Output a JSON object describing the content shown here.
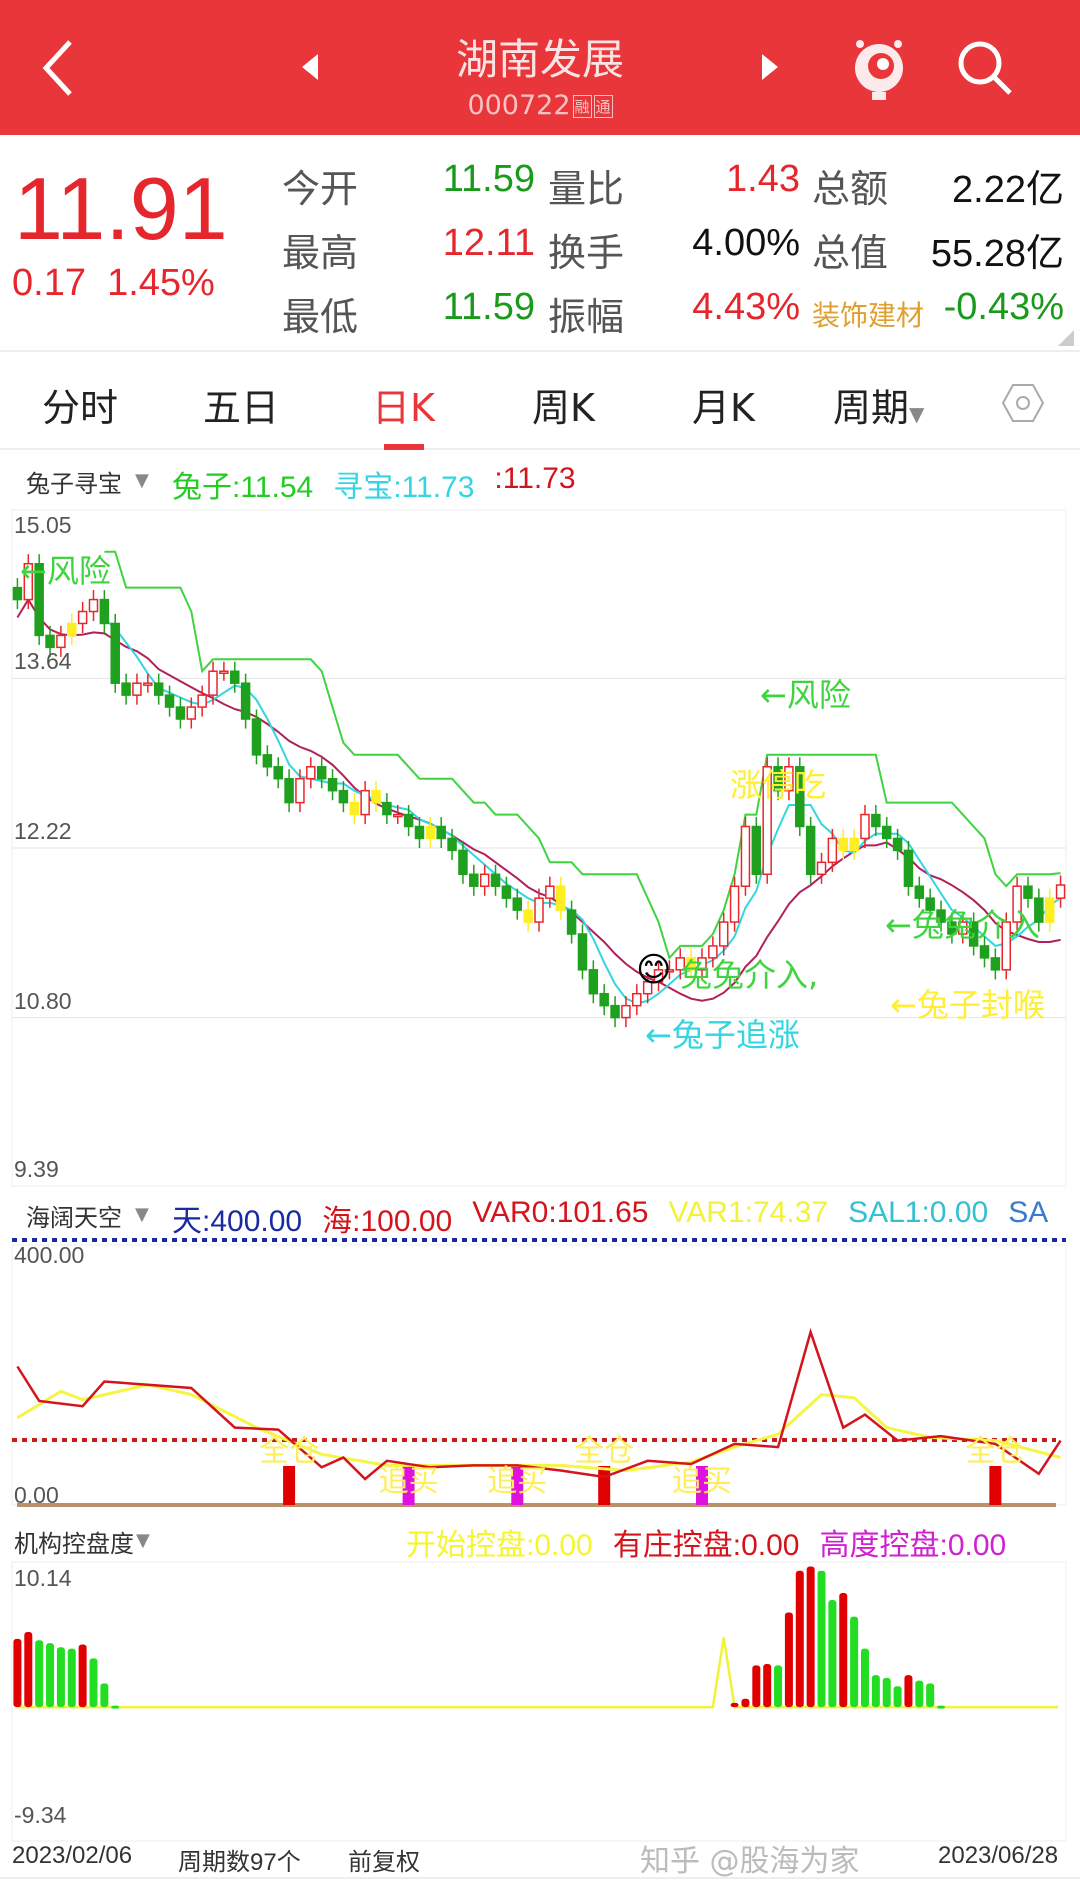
{
  "header": {
    "title": "湖南发展",
    "code": "000722",
    "tags": [
      "融",
      "通"
    ],
    "icons": [
      "back-icon",
      "prev-stock-icon",
      "next-stock-icon",
      "mascot-icon",
      "search-icon"
    ]
  },
  "quote": {
    "price": "11.91",
    "change": "0.17",
    "change_pct": "1.45%",
    "rows": [
      [
        {
          "l": "今开",
          "v": "11.59",
          "c": "#1a9a1a"
        },
        {
          "l": "量比",
          "v": "1.43",
          "c": "#e5272d"
        },
        {
          "l": "总额",
          "v": "2.22亿",
          "c": "#111"
        }
      ],
      [
        {
          "l": "最高",
          "v": "12.11",
          "c": "#e5272d"
        },
        {
          "l": "换手",
          "v": "4.00%",
          "c": "#111"
        },
        {
          "l": "总值",
          "v": "55.28亿",
          "c": "#111"
        }
      ],
      [
        {
          "l": "最低",
          "v": "11.59",
          "c": "#1a9a1a"
        },
        {
          "l": "振幅",
          "v": "4.43%",
          "c": "#e5272d"
        },
        {
          "l": "装饰建材",
          "v": "-0.43%",
          "c": "#1a9a1a"
        }
      ]
    ]
  },
  "tabs": {
    "items": [
      "分时",
      "五日",
      "日K",
      "周K",
      "月K",
      "周期"
    ],
    "active": 2,
    "settings_icon": "hexagon-settings-icon"
  },
  "colors": {
    "up": "#e8262c",
    "down": "#1fa01f",
    "header": "#e8363a",
    "accent": "#e8363a"
  },
  "chart_data": [
    {
      "type": "candlestick",
      "indicator": "兔子寻宝",
      "legend": [
        {
          "name": "兔子",
          "value": "11.54",
          "color": "#22cc22"
        },
        {
          "name": "寻宝",
          "value": "11.73",
          "color": "#33d6e0"
        },
        {
          "name": "",
          "value": "11.73",
          "color": "#d4141c"
        }
      ],
      "ylim": [
        9.39,
        15.05
      ],
      "yticks": [
        "15.05",
        "13.64",
        "12.22",
        "10.80",
        "9.39"
      ],
      "closes": [
        14.3,
        14.6,
        14.0,
        13.9,
        14.0,
        14.1,
        14.2,
        14.3,
        14.1,
        13.6,
        13.5,
        13.6,
        13.6,
        13.5,
        13.4,
        13.3,
        13.4,
        13.5,
        13.7,
        13.7,
        13.6,
        13.3,
        13.0,
        12.9,
        12.8,
        12.6,
        12.8,
        12.9,
        12.8,
        12.7,
        12.6,
        12.5,
        12.7,
        12.6,
        12.5,
        12.5,
        12.4,
        12.3,
        12.4,
        12.3,
        12.2,
        12.0,
        11.9,
        12.0,
        11.9,
        11.8,
        11.7,
        11.6,
        11.8,
        11.9,
        11.7,
        11.5,
        11.2,
        11.0,
        10.9,
        10.8,
        10.9,
        11.0,
        11.1,
        11.2,
        11.2,
        11.3,
        11.2,
        11.3,
        11.4,
        11.6,
        11.9,
        12.4,
        12.0,
        12.9,
        12.7,
        12.9,
        12.4,
        12.0,
        12.1,
        12.3,
        12.2,
        12.3,
        12.5,
        12.4,
        12.3,
        12.2,
        11.9,
        11.8,
        11.7,
        11.6,
        11.5,
        11.6,
        11.4,
        11.3,
        11.2,
        11.6,
        11.9,
        11.8,
        11.6,
        11.8,
        11.91
      ],
      "highlight": [
        5,
        31,
        33,
        38,
        47,
        50,
        62,
        76,
        77,
        95
      ],
      "annotations": [
        {
          "text": "←风险",
          "color": "#3fd43f"
        },
        {
          "text": "←风险",
          "color": "#3fd43f"
        },
        {
          "text": "涨停吃",
          "color": "#ffee33"
        },
        {
          "text": "←兔兔介入",
          "color": "#3fd43f"
        },
        {
          "text": "兔兔介入,",
          "color": "#3fd43f"
        },
        {
          "text": "←兔子追涨",
          "color": "#33d6e0"
        },
        {
          "text": "←兔子封喉",
          "color": "#ffee33"
        }
      ]
    },
    {
      "type": "line",
      "indicator": "海阔天空",
      "legend": [
        {
          "name": "天",
          "value": "400.00",
          "color": "#1a2aa0"
        },
        {
          "name": "海",
          "value": "100.00",
          "color": "#d4141c"
        },
        {
          "name": "VAR0",
          "value": "101.65",
          "color": "#d4141c"
        },
        {
          "name": "VAR1",
          "value": "74.37",
          "color": "#f2f23a"
        },
        {
          "name": "SAL1",
          "value": "0.00",
          "color": "#33c0d0"
        },
        {
          "name": "SA",
          "value": "",
          "color": "#3a7ad0"
        }
      ],
      "ylim": [
        0,
        400
      ],
      "yticks": [
        "400.00",
        "0.00"
      ],
      "sky": 400,
      "sea": 100,
      "var0": [
        [
          0,
          213
        ],
        [
          2,
          160
        ],
        [
          6,
          152
        ],
        [
          8,
          190
        ],
        [
          12,
          185
        ],
        [
          16,
          180
        ],
        [
          20,
          119
        ],
        [
          24,
          116
        ],
        [
          28,
          58
        ],
        [
          30,
          73
        ],
        [
          32,
          40
        ],
        [
          34,
          68
        ],
        [
          38,
          58
        ],
        [
          42,
          61
        ],
        [
          46,
          61
        ],
        [
          50,
          53
        ],
        [
          54,
          43
        ],
        [
          58,
          68
        ],
        [
          62,
          63
        ],
        [
          66,
          94
        ],
        [
          70,
          89
        ],
        [
          73,
          266
        ],
        [
          76,
          119
        ],
        [
          78,
          139
        ],
        [
          81,
          99
        ],
        [
          85,
          106
        ],
        [
          90,
          94
        ],
        [
          94,
          48
        ],
        [
          96,
          99
        ]
      ],
      "var1": [
        [
          0,
          134
        ],
        [
          4,
          175
        ],
        [
          6,
          162
        ],
        [
          12,
          185
        ],
        [
          16,
          170
        ],
        [
          22,
          119
        ],
        [
          28,
          78
        ],
        [
          34,
          61
        ],
        [
          42,
          61
        ],
        [
          50,
          61
        ],
        [
          56,
          53
        ],
        [
          62,
          66
        ],
        [
          66,
          89
        ],
        [
          70,
          109
        ],
        [
          74,
          170
        ],
        [
          77,
          165
        ],
        [
          80,
          119
        ],
        [
          84,
          104
        ],
        [
          90,
          99
        ],
        [
          96,
          73
        ]
      ],
      "signals": [
        {
          "i": 25,
          "type": "全仓",
          "color": "#e00000",
          "v": 60
        },
        {
          "i": 36,
          "type": "追买",
          "color": "#e010e0",
          "v": 60
        },
        {
          "i": 46,
          "type": "追买",
          "color": "#e010e0",
          "v": 60
        },
        {
          "i": 54,
          "type": "全仓",
          "color": "#e00000",
          "v": 60
        },
        {
          "i": 63,
          "type": "追买",
          "color": "#e010e0",
          "v": 60
        },
        {
          "i": 90,
          "type": "全仓",
          "color": "#e00000",
          "v": 60
        }
      ]
    },
    {
      "type": "bar",
      "indicator": "机构控盘度",
      "legend": [
        {
          "name": "开始控盘",
          "value": "0.00",
          "color": "#f5f530"
        },
        {
          "name": "有庄控盘",
          "value": "0.00",
          "color": "#d4141c"
        },
        {
          "name": "高度控盘",
          "value": "0.00",
          "color": "#d020d0"
        }
      ],
      "ylim": [
        -9.34,
        10.14
      ],
      "yticks": [
        "10.14",
        "-9.34"
      ],
      "bars": [
        [
          0,
          4.9,
          "r"
        ],
        [
          1,
          5.4,
          "r"
        ],
        [
          2,
          4.8,
          "g"
        ],
        [
          3,
          4.6,
          "g"
        ],
        [
          4,
          4.3,
          "g"
        ],
        [
          5,
          4.2,
          "g"
        ],
        [
          6,
          4.5,
          "r"
        ],
        [
          7,
          3.5,
          "g"
        ],
        [
          8,
          1.7,
          "g"
        ],
        [
          9,
          0.1,
          "g"
        ],
        [
          66,
          0.3,
          "r"
        ],
        [
          67,
          0.6,
          "r"
        ],
        [
          68,
          3.0,
          "r"
        ],
        [
          69,
          3.1,
          "r"
        ],
        [
          70,
          3.0,
          "g"
        ],
        [
          71,
          6.8,
          "r"
        ],
        [
          72,
          9.8,
          "r"
        ],
        [
          73,
          10.1,
          "r"
        ],
        [
          74,
          9.8,
          "g"
        ],
        [
          75,
          7.7,
          "g"
        ],
        [
          76,
          8.2,
          "r"
        ],
        [
          77,
          6.5,
          "g"
        ],
        [
          78,
          4.2,
          "g"
        ],
        [
          79,
          2.3,
          "g"
        ],
        [
          80,
          2.1,
          "g"
        ],
        [
          81,
          1.5,
          "g"
        ],
        [
          82,
          2.3,
          "r"
        ],
        [
          83,
          1.9,
          "g"
        ],
        [
          84,
          1.7,
          "g"
        ],
        [
          85,
          0.1,
          "g"
        ]
      ],
      "start_line_spike": {
        "i": 65,
        "v": 5.0
      }
    }
  ],
  "footer": {
    "start_date": "2023/02/06",
    "periods": "周期数97个",
    "adjust": "前复权",
    "end_date": "2023/06/28",
    "watermark": "知乎 @股海为家"
  }
}
